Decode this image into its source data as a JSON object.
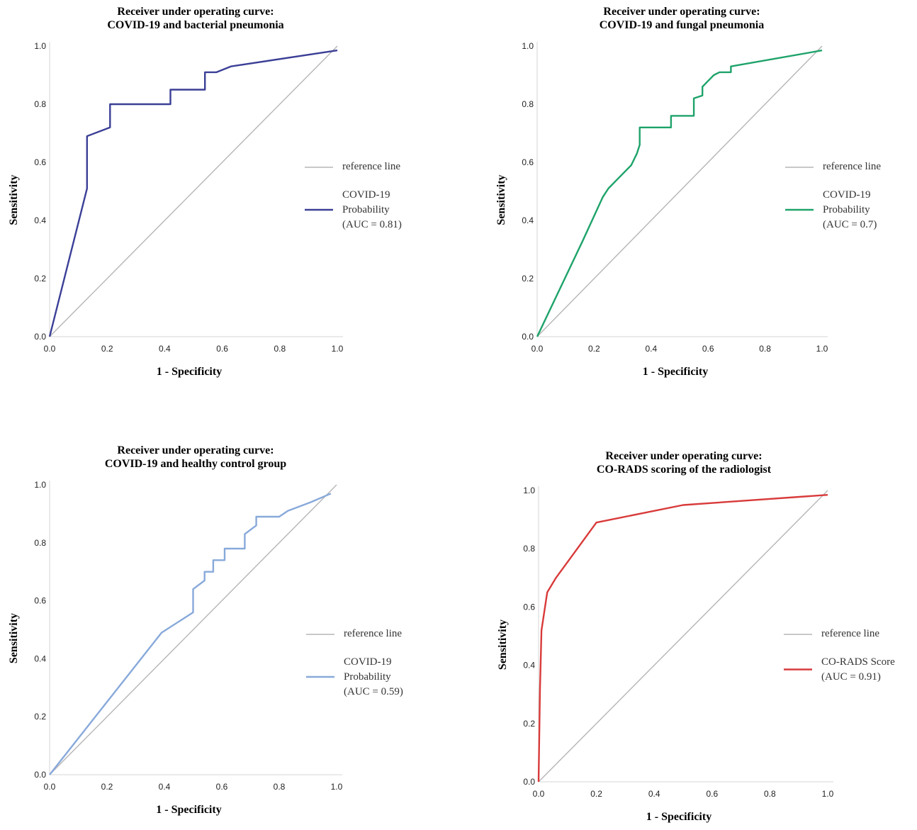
{
  "chart_data": [
    {
      "type": "line",
      "title": [
        "Receiver under operating curve:",
        "COVID-19 and bacterial pneumonia"
      ],
      "xlabel": "1 - Specificity",
      "ylabel": "Sensitivity",
      "xlim": [
        0,
        1
      ],
      "ylim": [
        0,
        1
      ],
      "xticks": [
        "0.0",
        "0.2",
        "0.4",
        "0.6",
        "0.8",
        "1.0"
      ],
      "yticks": [
        "0.0",
        "0.2",
        "0.4",
        "0.6",
        "0.8",
        "1.0"
      ],
      "color": "#3b3f96",
      "reference": {
        "name": "reference line",
        "color": "#b5b5b5",
        "x": [
          0,
          1
        ],
        "y": [
          0,
          1
        ]
      },
      "legend": {
        "reference_label": "reference line",
        "series_label": [
          "COVID-19",
          "Probability",
          "(AUC = 0.81)"
        ]
      },
      "series": [
        {
          "name": "COVID-19 Probability",
          "x": [
            0,
            0.13,
            0.13,
            0.21,
            0.21,
            0.42,
            0.42,
            0.54,
            0.54,
            0.58,
            0.63,
            1.0
          ],
          "y": [
            0,
            0.51,
            0.69,
            0.72,
            0.8,
            0.8,
            0.85,
            0.85,
            0.91,
            0.91,
            0.93,
            0.985
          ]
        }
      ]
    },
    {
      "type": "line",
      "title": [
        "Receiver under operating curve:",
        "COVID-19 and fungal pneumonia"
      ],
      "xlabel": "1 - Specificity",
      "ylabel": "Sensitivity",
      "xlim": [
        0,
        1
      ],
      "ylim": [
        0,
        1
      ],
      "xticks": [
        "0.0",
        "0.2",
        "0.4",
        "0.6",
        "0.8",
        "1.0"
      ],
      "yticks": [
        "0.0",
        "0.2",
        "0.4",
        "0.6",
        "0.8",
        "1.0"
      ],
      "color": "#1ea36a",
      "reference": {
        "name": "reference line",
        "color": "#b5b5b5",
        "x": [
          0,
          1
        ],
        "y": [
          0,
          1
        ]
      },
      "legend": {
        "reference_label": "reference line",
        "series_label": [
          "COVID-19",
          "Probability",
          "(AUC = 0.7)"
        ]
      },
      "series": [
        {
          "name": "COVID-19 Probability",
          "x": [
            0,
            0.16,
            0.23,
            0.25,
            0.31,
            0.33,
            0.35,
            0.36,
            0.36,
            0.47,
            0.47,
            0.55,
            0.55,
            0.58,
            0.58,
            0.6,
            0.62,
            0.64,
            0.68,
            0.68,
            1.0
          ],
          "y": [
            0,
            0.33,
            0.48,
            0.51,
            0.57,
            0.59,
            0.63,
            0.66,
            0.72,
            0.72,
            0.76,
            0.76,
            0.82,
            0.83,
            0.86,
            0.88,
            0.9,
            0.91,
            0.91,
            0.93,
            0.985
          ]
        }
      ]
    },
    {
      "type": "line",
      "title": [
        "Receiver under operating curve:",
        "COVID-19 and healthy control group"
      ],
      "xlabel": "1 - Specificity",
      "ylabel": "Sensitivity",
      "xlim": [
        0,
        1
      ],
      "ylim": [
        0,
        1
      ],
      "xticks": [
        "0.0",
        "0.2",
        "0.4",
        "0.6",
        "0.8",
        "1.0"
      ],
      "yticks": [
        "0.0",
        "0.2",
        "0.4",
        "0.6",
        "0.8",
        "1.0"
      ],
      "color": "#88a9da",
      "reference": {
        "name": "reference line",
        "color": "#b5b5b5",
        "x": [
          0,
          1
        ],
        "y": [
          0,
          1
        ]
      },
      "legend": {
        "reference_label": "reference line",
        "series_label": [
          "COVID-19",
          "Probability",
          "(AUC = 0.59)"
        ]
      },
      "series": [
        {
          "name": "COVID-19 Probability",
          "x": [
            0,
            0.39,
            0.5,
            0.5,
            0.54,
            0.54,
            0.57,
            0.57,
            0.61,
            0.61,
            0.68,
            0.68,
            0.72,
            0.72,
            0.8,
            0.83,
            0.91,
            0.98
          ],
          "y": [
            0,
            0.49,
            0.56,
            0.64,
            0.67,
            0.7,
            0.7,
            0.74,
            0.74,
            0.78,
            0.78,
            0.83,
            0.86,
            0.89,
            0.89,
            0.91,
            0.94,
            0.97
          ]
        }
      ]
    },
    {
      "type": "line",
      "title": [
        "Receiver under operating curve:",
        "CO-RADS scoring of the radiologist"
      ],
      "xlabel": "1 - Specificity",
      "ylabel": "Sensitivity",
      "xlim": [
        0,
        1
      ],
      "ylim": [
        0,
        1
      ],
      "xticks": [
        "0.0",
        "0.2",
        "0.4",
        "0.6",
        "0.8",
        "1.0"
      ],
      "yticks": [
        "0.0",
        "0.2",
        "0.4",
        "0.6",
        "0.8",
        "1.0"
      ],
      "color": "#d93a3a",
      "reference": {
        "name": "reference line",
        "color": "#b5b5b5",
        "x": [
          0,
          1
        ],
        "y": [
          0,
          1
        ]
      },
      "legend": {
        "reference_label": "reference line",
        "series_label": [
          "CO-RADS Score",
          "(AUC = 0.91)"
        ]
      },
      "series": [
        {
          "name": "CO-RADS Score",
          "x": [
            0,
            0.005,
            0.01,
            0.03,
            0.06,
            0.2,
            0.5,
            1.0
          ],
          "y": [
            0,
            0.32,
            0.52,
            0.65,
            0.7,
            0.89,
            0.95,
            0.985
          ]
        }
      ]
    }
  ]
}
